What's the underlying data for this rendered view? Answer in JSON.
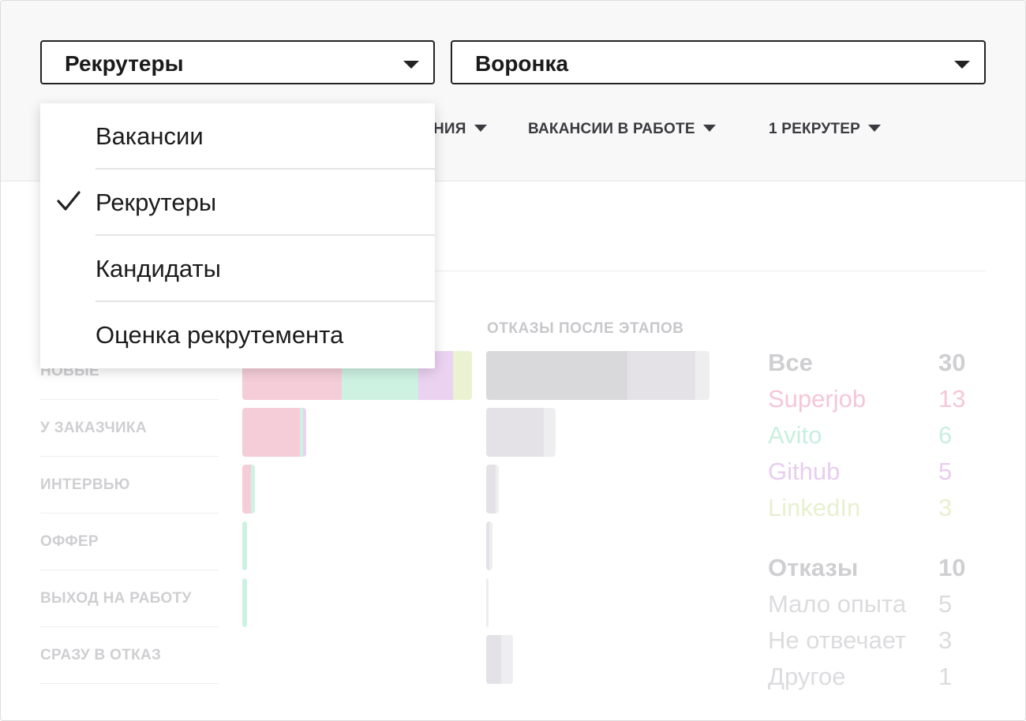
{
  "selects": {
    "report_type": "Рекрутеры",
    "report_view": "Воронка"
  },
  "filters": {
    "partial": "НИЯ",
    "vacancies": "ВАКАНСИИ В РАБОТЕ",
    "recruiter": "1 РЕКРУТЕР"
  },
  "dropdown": {
    "items": [
      {
        "label": "Вакансии",
        "selected": false
      },
      {
        "label": "Рекрутеры",
        "selected": true
      },
      {
        "label": "Кандидаты",
        "selected": false
      },
      {
        "label": "Оценка рекрутемента",
        "selected": false
      }
    ]
  },
  "columns": {
    "rejections_title": "ОТКАЗЫ ПОСЛЕ ЭТАПОВ"
  },
  "stages": [
    {
      "label": "НОВЫЕ",
      "sources": [
        30,
        0
      ],
      "rejections": [
        0,
        0
      ]
    },
    {
      "label": "У ЗАКАЗЧИКА"
    },
    {
      "label": "ИНТЕРВЬЮ"
    },
    {
      "label": "ОФФЕР"
    },
    {
      "label": "ВЫХОД НА РАБОТУ"
    },
    {
      "label": "СРАЗУ В ОТКАЗ"
    }
  ],
  "chart_data": {
    "type": "bar",
    "stacked": true,
    "categories": [
      "НОВЫЕ",
      "У ЗАКАЗЧИКА",
      "ИНТЕРВЬЮ",
      "ОФФЕР",
      "ВЫХОД НА РАБОТУ",
      "СРАЗУ В ОТКАЗ"
    ],
    "sources_series": [
      {
        "name": "Superjob",
        "color": "#f5cdd9",
        "values": [
          13,
          7.5,
          1.1,
          0,
          0,
          0
        ]
      },
      {
        "name": "Avito",
        "color": "#cdf2e2",
        "values": [
          10,
          0.4,
          0.5,
          0.6,
          0.6,
          0
        ]
      },
      {
        "name": "Github",
        "color": "#ead2f0",
        "values": [
          4.5,
          0.5,
          0,
          0,
          0,
          0
        ]
      },
      {
        "name": "LinkedIn",
        "color": "#eaf2d2",
        "values": [
          2.5,
          0,
          0,
          0,
          0,
          0
        ]
      }
    ],
    "rejections_title": "ОТКАЗЫ ПОСЛЕ ЭТАПОВ",
    "rejections_series": [
      {
        "name": "Мало опыта",
        "color": "#d9d9db",
        "values": [
          18.5,
          0,
          0,
          0,
          0,
          0
        ]
      },
      {
        "name": "Не отвечает",
        "color": "#e4e2e6",
        "values": [
          8.8,
          7.5,
          1.2,
          0.4,
          0,
          2
        ]
      },
      {
        "name": "Другое",
        "color": "#eeeef0",
        "values": [
          1.9,
          1.6,
          0.5,
          0.4,
          0.2,
          1.5
        ]
      }
    ]
  },
  "legend": {
    "sources_header": {
      "label": "Все",
      "value": "30"
    },
    "sources": [
      {
        "label": "Superjob",
        "value": "13",
        "color": "#f5c7d6"
      },
      {
        "label": "Avito",
        "value": "6",
        "color": "#c8efdf"
      },
      {
        "label": "Github",
        "value": "5",
        "color": "#e9cdef"
      },
      {
        "label": "LinkedIn",
        "value": "3",
        "color": "#e8f0cf"
      }
    ],
    "rejections_header": {
      "label": "Отказы",
      "value": "10"
    },
    "rejections": [
      {
        "label": "Мало опыта",
        "value": "5"
      },
      {
        "label": "Не отвечает",
        "value": "3"
      },
      {
        "label": "Другое",
        "value": "1"
      }
    ]
  }
}
